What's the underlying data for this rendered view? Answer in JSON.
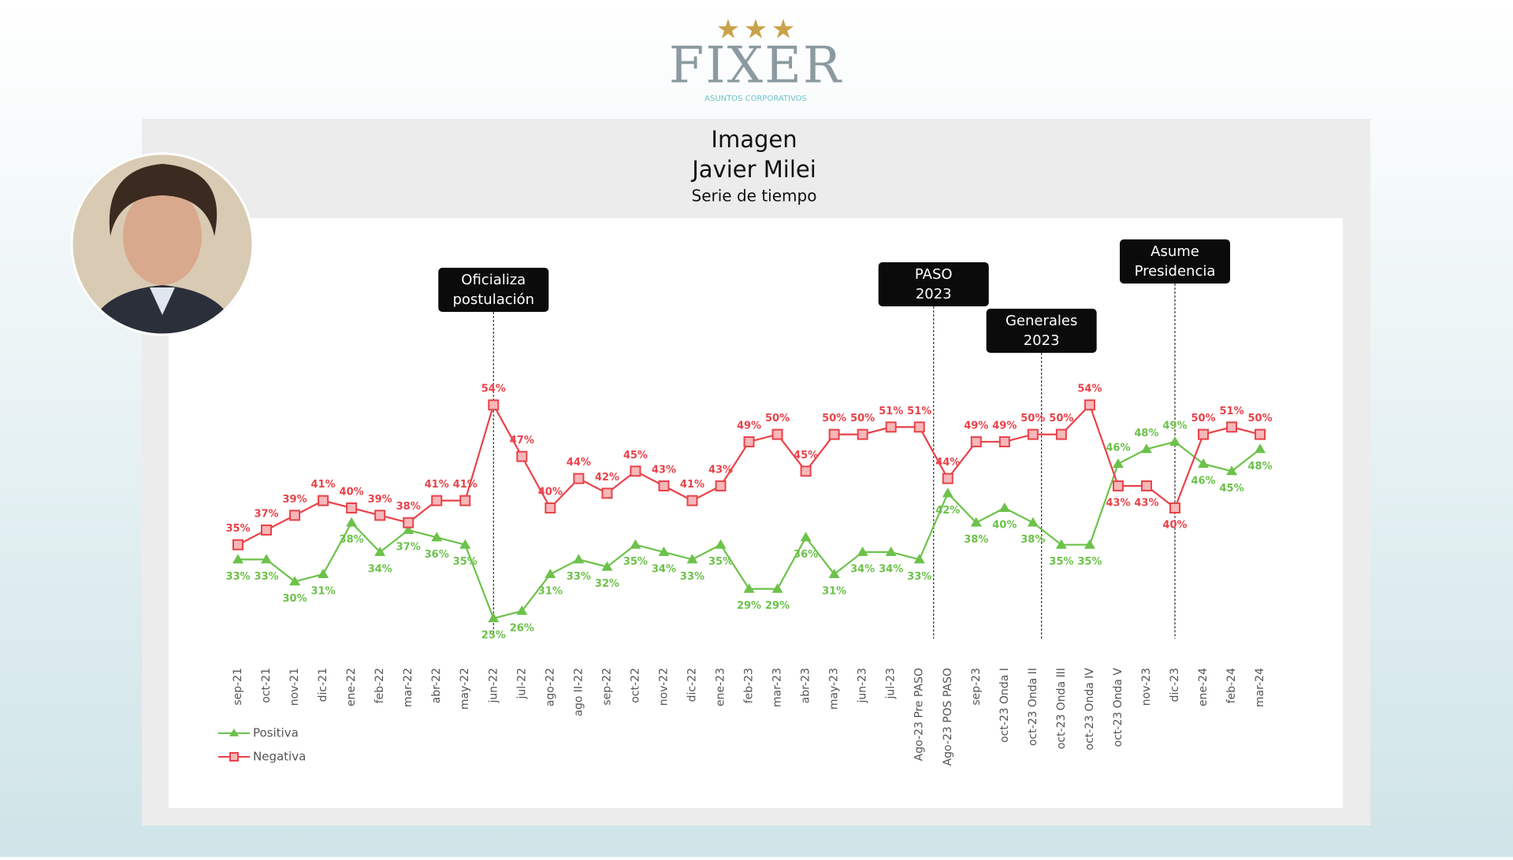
{
  "logo": {
    "name": "FIXER",
    "tagline": "ASUNTOS CORPORATIVOS"
  },
  "chart_data": {
    "type": "line",
    "title": "Imagen",
    "subtitle_name": "Javier Milei",
    "subtitle": "Serie de tiempo",
    "categories": [
      "sep-21",
      "oct-21",
      "nov-21",
      "dic-21",
      "ene-22",
      "feb-22",
      "mar-22",
      "abr-22",
      "may-22",
      "jun-22",
      "jul-22",
      "ago-22",
      "ago II-22",
      "sep-22",
      "oct-22",
      "nov-22",
      "dic-22",
      "ene-23",
      "feb-23",
      "mar-23",
      "abr-23",
      "may-23",
      "jun-23",
      "jul-23",
      "Ago-23 Pre PASO",
      "Ago-23 POS PASO",
      "sep-23",
      "oct-23 Onda I",
      "oct-23 Onda II",
      "oct-23 Onda III",
      "oct-23 Onda IV",
      "oct-23 Onda V",
      "nov-23",
      "dic-23",
      "ene-24",
      "feb-24",
      "mar-24"
    ],
    "series": [
      {
        "name": "Positiva",
        "color": "#6cc24a",
        "marker": "triangle",
        "values": [
          33,
          33,
          30,
          31,
          38,
          34,
          37,
          36,
          35,
          25,
          26,
          31,
          33,
          32,
          35,
          34,
          33,
          35,
          29,
          29,
          36,
          31,
          34,
          34,
          33,
          42,
          38,
          40,
          38,
          35,
          35,
          46,
          48,
          49,
          46,
          45,
          48
        ],
        "value_labels": [
          "33%",
          "33%",
          "30%",
          "31%",
          "38%",
          "34%",
          "37%",
          "36%",
          "35%",
          "25%",
          "26%",
          "31%",
          "33%",
          "32%",
          "35%",
          "34%",
          "33%",
          "35%",
          "29%",
          "29%",
          "36%",
          "31%",
          "34%",
          "34%",
          "33%",
          "42%",
          "38%",
          "40%",
          "38%",
          "35%",
          "35%",
          "46%",
          "48%",
          "49%",
          "46%",
          "45%",
          "48%"
        ]
      },
      {
        "name": "Negativa",
        "color": "#e8434a",
        "marker": "square",
        "values": [
          35,
          37,
          39,
          41,
          40,
          39,
          38,
          41,
          41,
          54,
          47,
          40,
          44,
          42,
          45,
          43,
          41,
          43,
          49,
          50,
          45,
          50,
          50,
          51,
          51,
          44,
          49,
          49,
          50,
          50,
          54,
          43,
          43,
          40,
          50,
          51,
          50
        ],
        "value_labels": [
          "35%",
          "37%",
          "39%",
          "41%",
          "40%",
          "39%",
          "38%",
          "41%",
          "41%",
          "54%",
          "47%",
          "40%",
          "44%",
          "42%",
          "45%",
          "43%",
          "41%",
          "43%",
          "49%",
          "50%",
          "45%",
          "50%",
          "50%",
          "51%",
          "51%",
          "44%",
          "49%",
          "49%",
          "50%",
          "50%",
          "54%",
          "43%",
          "43%",
          "40%",
          "50%",
          "51%",
          "50%"
        ]
      }
    ],
    "annotations": [
      {
        "lines": [
          "Oficializa",
          "postulación"
        ]
      },
      {
        "lines": [
          "PASO",
          "2023"
        ]
      },
      {
        "lines": [
          "Generales",
          "2023"
        ]
      },
      {
        "lines": [
          "Asume",
          "Presidencia"
        ]
      }
    ],
    "legend": "bottom-left"
  }
}
